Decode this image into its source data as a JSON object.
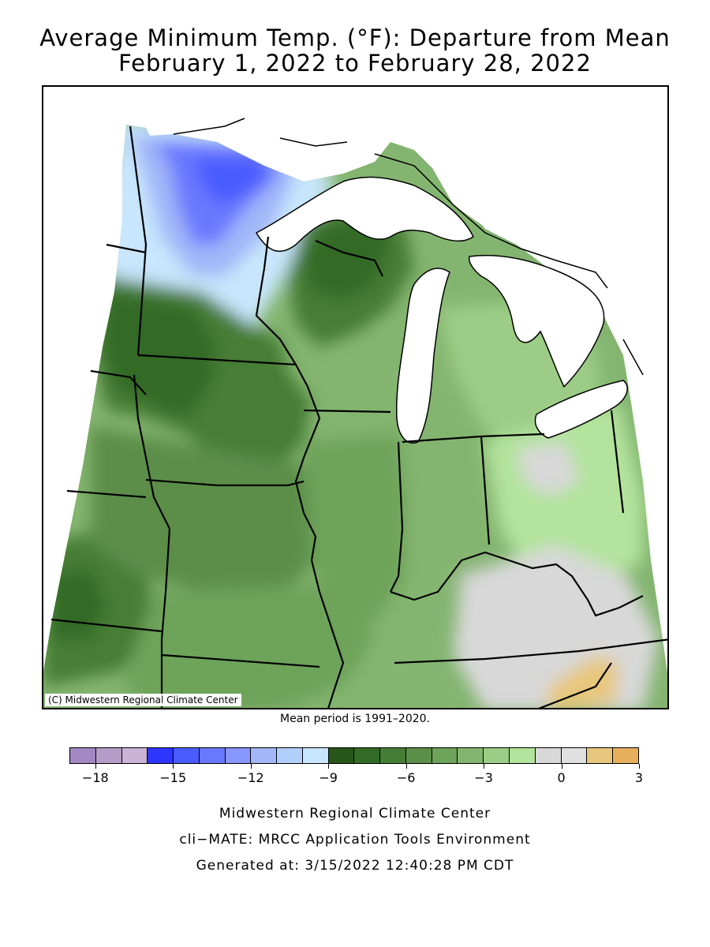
{
  "map": {
    "title_line1": "Average Minimum Temp. (°F): Departure from Mean",
    "title_line2": "February 1, 2022 to February 28, 2022",
    "copyright": "(C) Midwestern Regional Climate Center",
    "mean_period": "Mean period is 1991–2020.",
    "region": "Upper Midwest / Ohio Valley",
    "colors": {
      "lake": "#ffffff",
      "state_border": "#000000",
      "frame": "#000000"
    },
    "legend": {
      "bins": [
        {
          "color": "#a287c2"
        },
        {
          "color": "#b69dc9"
        },
        {
          "color": "#cbb2d6"
        },
        {
          "color": "#2c36ff"
        },
        {
          "color": "#4a5cff"
        },
        {
          "color": "#6a78ff"
        },
        {
          "color": "#8896ff"
        },
        {
          "color": "#a2b6f8"
        },
        {
          "color": "#b2cefa"
        },
        {
          "color": "#c8e6fd"
        },
        {
          "color": "#26561a"
        },
        {
          "color": "#326b25"
        },
        {
          "color": "#467d36"
        },
        {
          "color": "#5b8e48"
        },
        {
          "color": "#6ea35a"
        },
        {
          "color": "#84b570"
        },
        {
          "color": "#9ccc85"
        },
        {
          "color": "#b3e39c"
        },
        {
          "color": "#d8d8d8"
        },
        {
          "color": "#e0e0e0"
        },
        {
          "color": "#e7c77e"
        },
        {
          "color": "#e7b05c"
        }
      ],
      "tick_labels": [
        "−18",
        "−15",
        "−12",
        "−9",
        "−6",
        "−3",
        "0",
        "3"
      ],
      "tick_values": [
        -18,
        -15,
        -12,
        -9,
        -6,
        -3,
        0,
        3
      ]
    }
  },
  "footer": {
    "line1": "Midwestern Regional Climate Center",
    "line2": "cli−MATE: MRCC Application Tools Environment",
    "line3": "Generated at: 3/15/2022 12:40:28 PM CDT"
  }
}
